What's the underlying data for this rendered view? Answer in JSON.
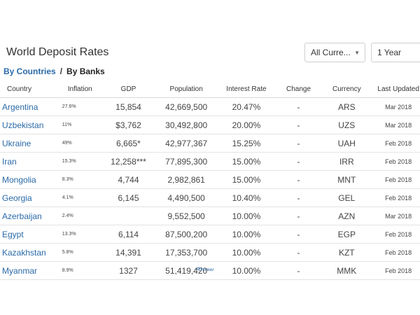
{
  "header": {
    "title": "World Deposit Rates",
    "currency_select": "All Curre...",
    "period_select": "1 Year"
  },
  "tabs": {
    "by_countries": "By Countries",
    "separator": "/",
    "by_banks": "By Banks"
  },
  "table": {
    "columns": [
      "Country",
      "Inflation",
      "GDP",
      "Population",
      "Interest Rate",
      "Change",
      "Currency",
      "Last Updated"
    ],
    "rows": [
      {
        "country": "Argentina",
        "inflation": "27.6%",
        "gdp": "15,854",
        "population": "42,669,500",
        "rate": "20.47%",
        "change": "-",
        "currency": "ARS",
        "updated": "Mar 2018"
      },
      {
        "country": "Uzbekistan",
        "inflation": "11%",
        "gdp": "$3,762",
        "population": "30,492,800",
        "rate": "20.00%",
        "change": "-",
        "currency": "UZS",
        "updated": "Mar 2018"
      },
      {
        "country": "Ukraine",
        "inflation": "49%",
        "gdp": "6,665*",
        "population": "42,977,367",
        "rate": "15.25%",
        "change": "-",
        "currency": "UAH",
        "updated": "Feb 2018"
      },
      {
        "country": "Iran",
        "inflation": "15.3%",
        "gdp": "12,258***",
        "population": "77,895,300",
        "rate": "15.00%",
        "change": "-",
        "currency": "IRR",
        "updated": "Feb 2018"
      },
      {
        "country": "Mongolia",
        "inflation": "8.3%",
        "gdp": "4,744",
        "population": "2,982,861",
        "rate": "15.00%",
        "change": "-",
        "currency": "MNT",
        "updated": "Feb 2018"
      },
      {
        "country": "Georgia",
        "inflation": "4.1%",
        "gdp": "6,145",
        "population": "4,490,500",
        "rate": "10.40%",
        "change": "-",
        "currency": "GEL",
        "updated": "Feb 2018"
      },
      {
        "country": "Azerbaijan",
        "inflation": "2.4%",
        "gdp": "",
        "population": "9,552,500",
        "rate": "10.00%",
        "change": "-",
        "currency": "AZN",
        "updated": "Mar 2018"
      },
      {
        "country": "Egypt",
        "inflation": "13.3%",
        "gdp": "6,114",
        "population": "87,500,200",
        "rate": "10.00%",
        "change": "-",
        "currency": "EGP",
        "updated": "Feb 2018"
      },
      {
        "country": "Kazakhstan",
        "inflation": "5.8%",
        "gdp": "14,391",
        "population": "17,353,700",
        "rate": "10.00%",
        "change": "-",
        "currency": "KZT",
        "updated": "Feb 2018"
      },
      {
        "country": "Myanmar",
        "inflation": "8.9%",
        "gdp": "1327",
        "population": "51,419,420",
        "rate": "10.00%",
        "change": "-",
        "currency": "MMK",
        "updated": "Feb 2018"
      }
    ]
  },
  "footer": {
    "show_more": "Show More"
  },
  "colors": {
    "link": "#2a6aa8",
    "border": "#e3e3e3"
  },
  "icons": {
    "select_caret": "caret-down-icon"
  }
}
